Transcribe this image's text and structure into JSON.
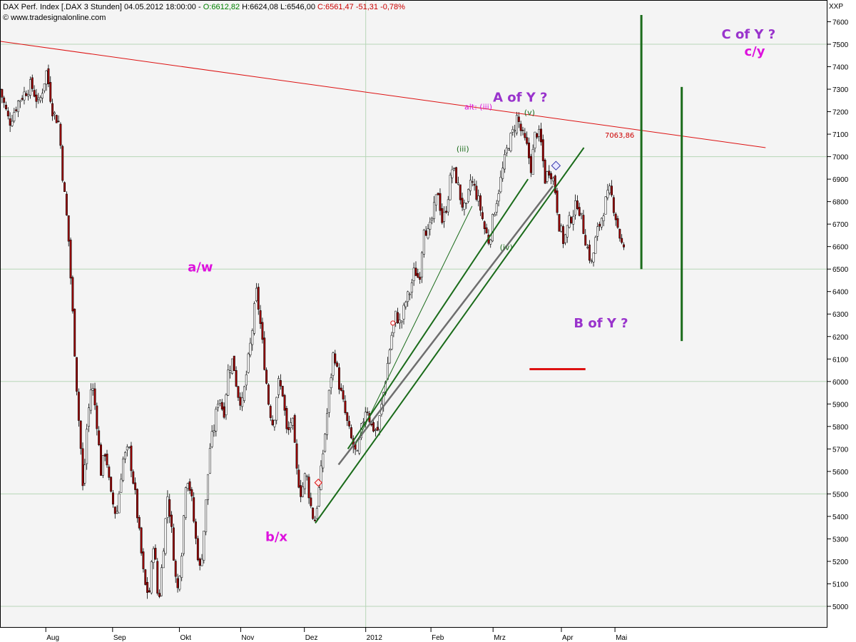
{
  "header": {
    "name": "DAX Perf. Index [.DAX",
    "timeframe": "3 Stunden]",
    "datetime": "04.05.2012 18:00:00",
    "separator": "-",
    "open": "O:6612,82",
    "high": "H:6624,08",
    "low": "L:6546,00",
    "close": "C:6561,47 -51,31 -0,78%",
    "copyright": "© www.tradesignalonline.com",
    "scale_code": "XXP"
  },
  "colors": {
    "background": "#f4f4f4",
    "grid": "#b7d6b7",
    "candle_up": "#ffffff",
    "candle_down": "#990000",
    "resistance": "#dd1111",
    "trend_green": "#1a6b1a",
    "trend_grey": "#6e6e6e",
    "label_magenta": "#dd11dd",
    "label_purple": "#9933cc"
  },
  "chart_data": {
    "type": "candlestick",
    "title": "DAX Perf. Index [.DAX 3 Stunden]",
    "y_ticks": [
      5000,
      5100,
      5200,
      5300,
      5400,
      5500,
      5600,
      5700,
      5800,
      5900,
      6000,
      6100,
      6200,
      6300,
      6400,
      6500,
      6600,
      6700,
      6800,
      6900,
      7000,
      7100,
      7200,
      7300,
      7400,
      7500,
      7600
    ],
    "ylim": [
      4900,
      7650
    ],
    "x_ticks": [
      "Aug",
      "Sep",
      "Okt",
      "Nov",
      "Dez",
      "2012",
      "Feb",
      "Mrz",
      "Apr",
      "Mai"
    ],
    "grid": true,
    "price_path": [
      [
        0,
        7300
      ],
      [
        0.6,
        7150
      ],
      [
        1.2,
        7250
      ],
      [
        2,
        7320
      ],
      [
        2.5,
        7230
      ],
      [
        3,
        7380
      ],
      [
        3.4,
        7200
      ],
      [
        3.8,
        7150
      ],
      [
        4.05,
        6900
      ],
      [
        4.2,
        6800
      ],
      [
        4.4,
        6650
      ],
      [
        4.6,
        6400
      ],
      [
        4.8,
        6150
      ],
      [
        5.0,
        5900
      ],
      [
        5.2,
        5700
      ],
      [
        5.35,
        5500
      ],
      [
        5.6,
        5800
      ],
      [
        5.9,
        6000
      ],
      [
        6.2,
        5850
      ],
      [
        6.5,
        5600
      ],
      [
        6.8,
        5700
      ],
      [
        7.1,
        5500
      ],
      [
        7.5,
        5400
      ],
      [
        7.9,
        5650
      ],
      [
        8.3,
        5700
      ],
      [
        8.7,
        5500
      ],
      [
        9.0,
        5300
      ],
      [
        9.3,
        5100
      ],
      [
        9.6,
        5050
      ],
      [
        9.9,
        5300
      ],
      [
        10.2,
        5000
      ],
      [
        10.5,
        5250
      ],
      [
        10.8,
        5500
      ],
      [
        11.1,
        5300
      ],
      [
        11.4,
        5050
      ],
      [
        11.7,
        5250
      ],
      [
        12.0,
        5600
      ],
      [
        12.3,
        5500
      ],
      [
        12.6,
        5300
      ],
      [
        12.9,
        5150
      ],
      [
        13.2,
        5400
      ],
      [
        13.5,
        5700
      ],
      [
        13.8,
        5800
      ],
      [
        14.1,
        5950
      ],
      [
        14.4,
        5850
      ],
      [
        14.7,
        6050
      ],
      [
        15.0,
        6100
      ],
      [
        15.3,
        5950
      ],
      [
        15.6,
        5900
      ],
      [
        15.9,
        6050
      ],
      [
        16.2,
        6200
      ],
      [
        16.5,
        6400
      ],
      [
        16.7,
        6300
      ],
      [
        17.0,
        6100
      ],
      [
        17.3,
        5900
      ],
      [
        17.6,
        5800
      ],
      [
        17.9,
        6000
      ],
      [
        18.2,
        5950
      ],
      [
        18.5,
        5750
      ],
      [
        18.8,
        5850
      ],
      [
        19.1,
        5600
      ],
      [
        19.4,
        5500
      ],
      [
        19.7,
        5600
      ],
      [
        20.0,
        5450
      ],
      [
        20.25,
        5370
      ],
      [
        20.6,
        5550
      ],
      [
        20.9,
        5750
      ],
      [
        21.2,
        5950
      ],
      [
        21.5,
        6150
      ],
      [
        21.8,
        6000
      ],
      [
        22.1,
        5900
      ],
      [
        22.4,
        5800
      ],
      [
        22.7,
        5720
      ],
      [
        23.0,
        5660
      ],
      [
        23.3,
        5800
      ],
      [
        23.6,
        5900
      ],
      [
        23.9,
        5800
      ],
      [
        24.3,
        5780
      ],
      [
        24.6,
        5900
      ],
      [
        24.9,
        6050
      ],
      [
        25.2,
        6200
      ],
      [
        25.5,
        6300
      ],
      [
        25.8,
        6250
      ],
      [
        26.1,
        6350
      ],
      [
        26.4,
        6400
      ],
      [
        26.7,
        6500
      ],
      [
        27.0,
        6450
      ],
      [
        27.3,
        6700
      ],
      [
        27.6,
        6650
      ],
      [
        27.9,
        6750
      ],
      [
        28.2,
        6850
      ],
      [
        28.5,
        6700
      ],
      [
        28.8,
        6800
      ],
      [
        29.1,
        6950
      ],
      [
        29.4,
        6900
      ],
      [
        29.7,
        6800
      ],
      [
        30.0,
        6750
      ],
      [
        30.3,
        6900
      ],
      [
        30.6,
        6850
      ],
      [
        30.9,
        6780
      ],
      [
        31.2,
        6680
      ],
      [
        31.5,
        6620
      ],
      [
        31.8,
        6750
      ],
      [
        32.1,
        6850
      ],
      [
        32.4,
        6950
      ],
      [
        32.7,
        7050
      ],
      [
        33.0,
        7100
      ],
      [
        33.3,
        7180
      ],
      [
        33.6,
        7100
      ],
      [
        33.9,
        7050
      ],
      [
        34.2,
        6950
      ],
      [
        34.5,
        7120
      ],
      [
        34.8,
        7080
      ],
      [
        35.1,
        6900
      ],
      [
        35.4,
        6950
      ],
      [
        35.7,
        6880
      ],
      [
        36.0,
        6700
      ],
      [
        36.3,
        6620
      ],
      [
        36.6,
        6700
      ],
      [
        36.9,
        6750
      ],
      [
        37.2,
        6800
      ],
      [
        37.5,
        6700
      ],
      [
        37.8,
        6600
      ],
      [
        38.1,
        6520
      ],
      [
        38.4,
        6650
      ],
      [
        38.7,
        6720
      ],
      [
        39.0,
        6800
      ],
      [
        39.3,
        6850
      ],
      [
        39.6,
        6750
      ],
      [
        39.9,
        6650
      ],
      [
        40.1,
        6590
      ],
      [
        40.3,
        6560
      ]
    ],
    "series": [
      {
        "values": [
          [
            0,
            7513
          ],
          [
            49.3,
            7040
          ]
        ]
      },
      {
        "values": [
          [
            20.3,
            5370
          ],
          [
            37.6,
            7040
          ]
        ]
      },
      {
        "values": [
          [
            21.8,
            5630
          ],
          [
            35.6,
            6870
          ]
        ]
      },
      {
        "values": [
          [
            22.4,
            5700
          ],
          [
            34.0,
            6900
          ]
        ]
      },
      {
        "values": [
          [
            22.9,
            5720
          ],
          [
            30.4,
            6780
          ]
        ]
      },
      {
        "values": [
          [
            41.3,
            7630
          ],
          [
            41.3,
            6500
          ]
        ]
      },
      {
        "values": [
          [
            43.9,
            7310
          ],
          [
            43.9,
            6180
          ]
        ]
      },
      {
        "values": [
          [
            34.1,
            6055
          ],
          [
            37.7,
            6055
          ]
        ]
      }
    ],
    "annotations": [
      {
        "text": "a/w",
        "x": 12.9,
        "y": 6490
      },
      {
        "text": "b/x",
        "x": 17.8,
        "y": 5290
      },
      {
        "text": "A of Y ?",
        "x": 33.5,
        "y": 7245
      },
      {
        "text": "B of Y ?",
        "x": 38.7,
        "y": 6240
      },
      {
        "text": "C of Y ?",
        "x": 48.2,
        "y": 7525
      },
      {
        "text": "c/y",
        "x": 48.6,
        "y": 7450
      },
      {
        "text": "alt: (iii)",
        "x": 30.8,
        "y": 7210
      },
      {
        "text": "(v)",
        "x": 34.1,
        "y": 7185
      },
      {
        "text": "(iii)",
        "x": 29.8,
        "y": 7022
      },
      {
        "text": "(iv)",
        "x": 32.6,
        "y": 6585
      },
      {
        "text": "7063,86",
        "x": 39.9,
        "y": 7085
      }
    ],
    "markers": [
      {
        "x": 20.5,
        "y": 5550
      },
      {
        "x": 25.3,
        "y": 6260
      },
      {
        "x": 35.8,
        "y": 6960
      }
    ]
  }
}
